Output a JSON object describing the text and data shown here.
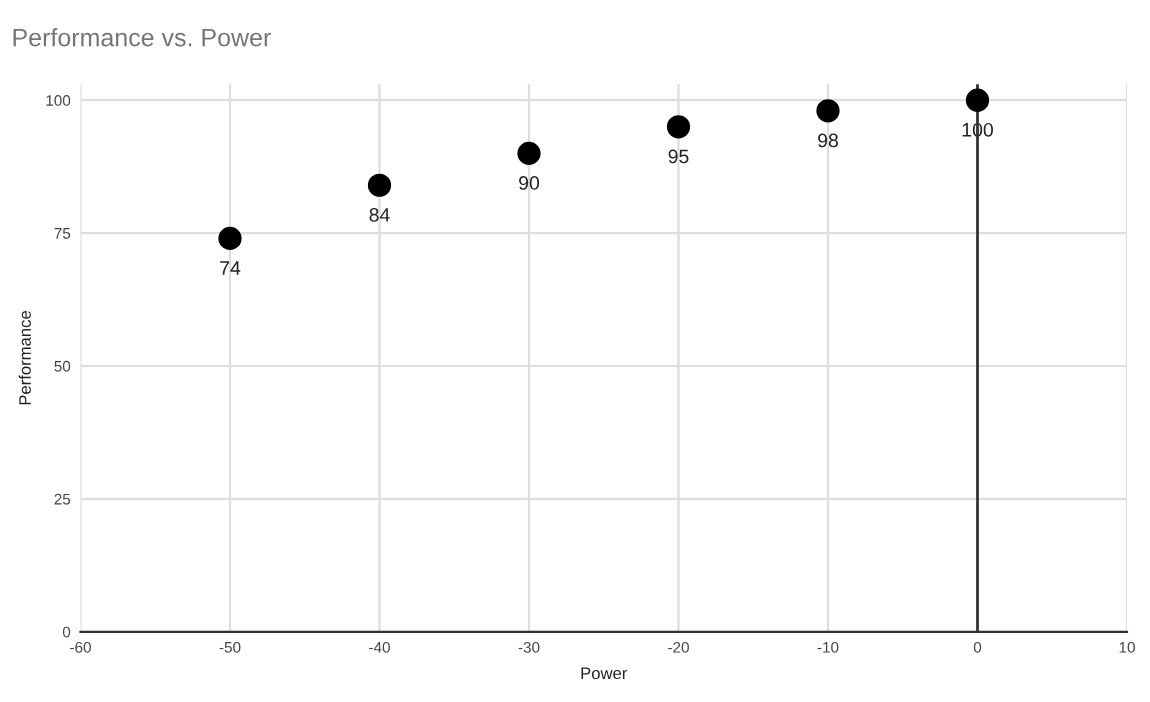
{
  "chart_data": {
    "type": "scatter",
    "title": "Performance vs. Power",
    "xlabel": "Power",
    "ylabel": "Performance",
    "x": [
      -50,
      -40,
      -30,
      -20,
      -10,
      0
    ],
    "series": [
      {
        "color": "#000000",
        "values": [
          74,
          84,
          90,
          95,
          98,
          100
        ]
      }
    ],
    "data_labels": true,
    "marker": "circle",
    "xlim": [
      -60,
      10
    ],
    "xticks": [
      -60,
      -50,
      -40,
      -30,
      -20,
      -10,
      0,
      10
    ],
    "ylim": [
      0,
      103
    ],
    "yticks": [
      0,
      25,
      50,
      75,
      100
    ],
    "grid": true,
    "legend": false,
    "ref_lines": [
      {
        "axis": "x",
        "value": 0,
        "color": "#333333"
      }
    ]
  }
}
